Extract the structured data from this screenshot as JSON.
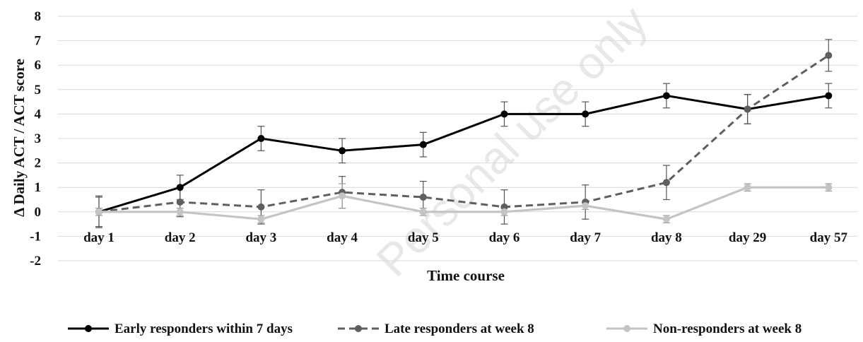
{
  "watermark": "Personal use only",
  "chart_data": {
    "type": "line",
    "title": "",
    "xlabel": "Time course",
    "ylabel": "Δ Daily ACT / ACT  score",
    "categories": [
      "day 1",
      "day 2",
      "day 3",
      "day 4",
      "day 5",
      "day 6",
      "day 7",
      "day 8",
      "day 29",
      "day 57"
    ],
    "ylim": [
      -2,
      8
    ],
    "yticks": [
      8,
      7,
      6,
      5,
      4,
      3,
      2,
      1,
      0,
      -1,
      -2
    ],
    "grid": true,
    "legend_position": "bottom",
    "series": [
      {
        "name": "Early responders within 7 days",
        "values": [
          0,
          1.0,
          3.0,
          2.5,
          2.75,
          4.0,
          4.0,
          4.75,
          4.2,
          4.75
        ],
        "error": [
          0.65,
          0.5,
          0.5,
          0.5,
          0.5,
          0.5,
          0.5,
          0.5,
          0.6,
          0.5
        ],
        "color": "#000000",
        "style": "solid"
      },
      {
        "name": "Late responders at week 8",
        "values": [
          0,
          0.4,
          0.2,
          0.8,
          0.6,
          0.2,
          0.4,
          1.2,
          4.2,
          6.4
        ],
        "error": [
          0.6,
          0.6,
          0.7,
          0.65,
          0.65,
          0.7,
          0.7,
          0.7,
          0.6,
          0.65
        ],
        "color": "#5f5f5f",
        "style": "dashed"
      },
      {
        "name": "Non-responders at week 8",
        "values": [
          0,
          0,
          -0.3,
          0.65,
          0,
          0,
          0.25,
          -0.3,
          1.0,
          1.0
        ],
        "error": [
          0.15,
          0.15,
          0.15,
          0.5,
          0.15,
          0.15,
          0.15,
          0.15,
          0.15,
          0.15
        ],
        "color": "#c4c4c4",
        "style": "solid"
      }
    ]
  }
}
